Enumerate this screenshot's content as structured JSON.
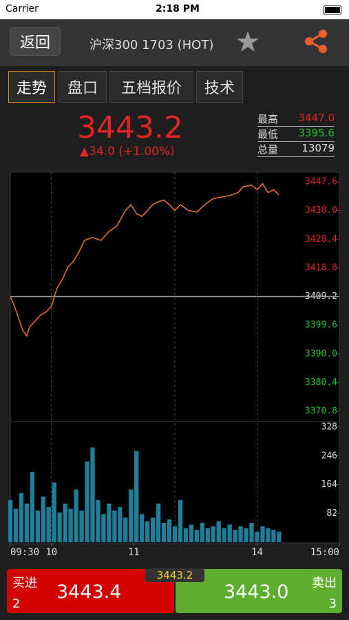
{
  "status_bar": {
    "carrier": "Carrier",
    "time": "2:18 PM"
  },
  "nav": {
    "back": "返回",
    "title": "沪深300 1703 (HOT)"
  },
  "tabs": [
    "走势",
    "盘口",
    "五档报价",
    "技术"
  ],
  "quote": {
    "price": "3443.2",
    "change": "▲34.0 (+1.00%)",
    "stats": [
      {
        "label": "最高",
        "value": "3447.0"
      },
      {
        "label": "最低",
        "value": "3395.6"
      },
      {
        "label": "总量",
        "value": "13079"
      }
    ]
  },
  "chart": {
    "type": "line",
    "xlim": [
      0,
      240
    ],
    "xticks": [
      {
        "value": 0,
        "label": "09:30"
      },
      {
        "value": 30,
        "label": "10"
      },
      {
        "value": 90,
        "label": "11"
      },
      {
        "value": 180,
        "label": "14"
      },
      {
        "value": 240,
        "label": "15:00"
      }
    ],
    "xgrid": [
      30,
      120,
      180
    ],
    "ylim": [
      3370.8,
      3447.6
    ],
    "yticks": [
      3447.6,
      {
        "value": 3438,
        "label": "3438.0"
      },
      3428.4,
      3418.8,
      3409.2,
      3399.6,
      {
        "value": 3390,
        "label": "3390.0"
      },
      3380.4,
      3370.8
    ],
    "prev_close": 3409.2,
    "up_color": "#e02424",
    "down_color": "#22c02a",
    "flat_color": "#dddddd",
    "price": {
      "color": "#e0702a",
      "x": [
        0,
        3,
        6,
        9,
        12,
        14,
        18,
        22,
        26,
        30,
        34,
        38,
        42,
        46,
        50,
        54,
        60,
        66,
        72,
        78,
        84,
        88,
        92,
        96,
        100,
        104,
        108,
        112,
        116,
        120,
        124,
        130,
        136,
        142,
        148,
        154,
        160,
        166,
        170,
        176,
        180,
        184,
        188,
        192,
        196
      ],
      "values": [
        3409.2,
        3406,
        3402,
        3398,
        3396,
        3399,
        3401,
        3403,
        3404,
        3406,
        3412,
        3415,
        3419,
        3421,
        3424,
        3428,
        3429,
        3428,
        3431,
        3433,
        3438,
        3440,
        3437,
        3436,
        3438,
        3440,
        3441,
        3441.5,
        3440,
        3438,
        3440,
        3438,
        3437.5,
        3440,
        3442,
        3442.5,
        3443,
        3444,
        3446,
        3446.5,
        3445,
        3447,
        3444,
        3445,
        3443.2
      ]
    },
    "volume": {
      "color": "#1f7f99",
      "ylim": [
        0,
        328
      ],
      "yticks": [
        328,
        246,
        164,
        82
      ],
      "x": [
        0,
        4,
        8,
        12,
        16,
        20,
        24,
        28,
        32,
        36,
        40,
        44,
        48,
        52,
        56,
        60,
        64,
        68,
        72,
        76,
        80,
        84,
        88,
        92,
        96,
        100,
        104,
        108,
        112,
        116,
        120,
        124,
        128,
        132,
        136,
        140,
        144,
        148,
        152,
        156,
        160,
        164,
        168,
        172,
        176,
        180,
        184,
        188,
        192,
        196
      ],
      "values": [
        120,
        95,
        140,
        110,
        200,
        90,
        130,
        100,
        170,
        85,
        110,
        95,
        150,
        90,
        230,
        270,
        120,
        80,
        110,
        90,
        100,
        70,
        150,
        260,
        80,
        60,
        70,
        110,
        55,
        65,
        45,
        120,
        40,
        50,
        35,
        55,
        40,
        45,
        60,
        40,
        50,
        35,
        45,
        40,
        55,
        30,
        45,
        40,
        35,
        30
      ]
    }
  },
  "bottom": {
    "buy_label": "买进",
    "buy_qty": "2",
    "buy_price": "3443.4",
    "last": "3443.2",
    "sell_label": "卖出",
    "sell_price": "3443.0",
    "sell_qty": "3"
  }
}
